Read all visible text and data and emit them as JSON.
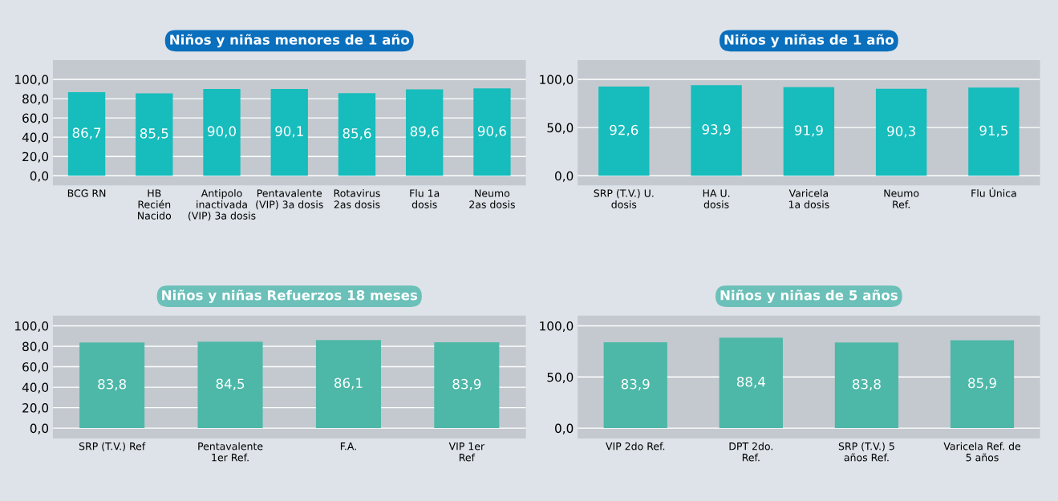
{
  "chart_data": [
    {
      "type": "bar",
      "title": "Niños y niñas menores de 1 año",
      "categories": [
        "BCG RN",
        "HB\nRecién\nNacido",
        "Antipolo\ninactivada\n(VIP) 3a dosis",
        "Pentavalente\n(VIP) 3a dosis",
        "Rotavirus\n2as dosis",
        "Flu 1a\ndosis",
        "Neumo\n2as dosis"
      ],
      "values": [
        86.7,
        85.5,
        90.0,
        90.1,
        85.6,
        89.6,
        90.6
      ],
      "value_labels": [
        "86,7",
        "85,5",
        "90,0",
        "90,1",
        "85,6",
        "89,6",
        "90,6"
      ],
      "color": "#17bcbc",
      "ylim": [
        -10,
        120
      ],
      "yticks": [
        {
          "value": 0,
          "label": "0,0"
        },
        {
          "value": 20,
          "label": "20,0"
        },
        {
          "value": 40,
          "label": "40,0"
        },
        {
          "value": 60,
          "label": "60,0"
        },
        {
          "value": 80,
          "label": "80,0"
        },
        {
          "value": 100,
          "label": "100,0"
        }
      ],
      "grid": "y"
    },
    {
      "type": "bar",
      "title": "Niños y niñas de 1 año",
      "categories": [
        "SRP (T.V.) U.\ndosis",
        "HA U.\ndosis",
        "Varicela\n1a dosis",
        "Neumo\nRef.",
        "Flu Única"
      ],
      "values": [
        92.6,
        93.9,
        91.9,
        90.3,
        91.5
      ],
      "value_labels": [
        "92,6",
        "93,9",
        "91,9",
        "90,3",
        "91,5"
      ],
      "color": "#17bcbc",
      "ylim": [
        -10,
        120
      ],
      "yticks": [
        {
          "value": 0,
          "label": "0,0"
        },
        {
          "value": 50,
          "label": "50,0"
        },
        {
          "value": 100,
          "label": "100,0"
        }
      ],
      "grid": "y"
    },
    {
      "type": "bar",
      "title": "Niños y niñas Refuerzos 18 meses",
      "categories": [
        "SRP (T.V.) Ref",
        "Pentavalente\n1er Ref.",
        "F.A.",
        "VIP 1er\nRef"
      ],
      "values": [
        83.8,
        84.5,
        86.1,
        83.9
      ],
      "value_labels": [
        "83,8",
        "84,5",
        "86,1",
        "83,9"
      ],
      "color": "#4db8a8",
      "ylim": [
        -10,
        110
      ],
      "yticks": [
        {
          "value": 0,
          "label": "0,0"
        },
        {
          "value": 20,
          "label": "20,0"
        },
        {
          "value": 40,
          "label": "40,0"
        },
        {
          "value": 60,
          "label": "60,0"
        },
        {
          "value": 80,
          "label": "80,0"
        },
        {
          "value": 100,
          "label": "100,0"
        }
      ],
      "grid": "y"
    },
    {
      "type": "bar",
      "title": "Niños y niñas de 5 años",
      "categories": [
        "VIP 2do Ref.",
        "DPT 2do.\nRef.",
        "SRP (T.V.) 5\naños Ref.",
        "Varicela Ref. de\n5 años"
      ],
      "values": [
        83.9,
        88.4,
        83.8,
        85.9
      ],
      "value_labels": [
        "83,9",
        "88,4",
        "83,8",
        "85,9"
      ],
      "color": "#4db8a8",
      "ylim": [
        -10,
        110
      ],
      "yticks": [
        {
          "value": 0,
          "label": "0,0"
        },
        {
          "value": 50,
          "label": "50,0"
        },
        {
          "value": 100,
          "label": "100,0"
        }
      ],
      "grid": "y"
    }
  ]
}
